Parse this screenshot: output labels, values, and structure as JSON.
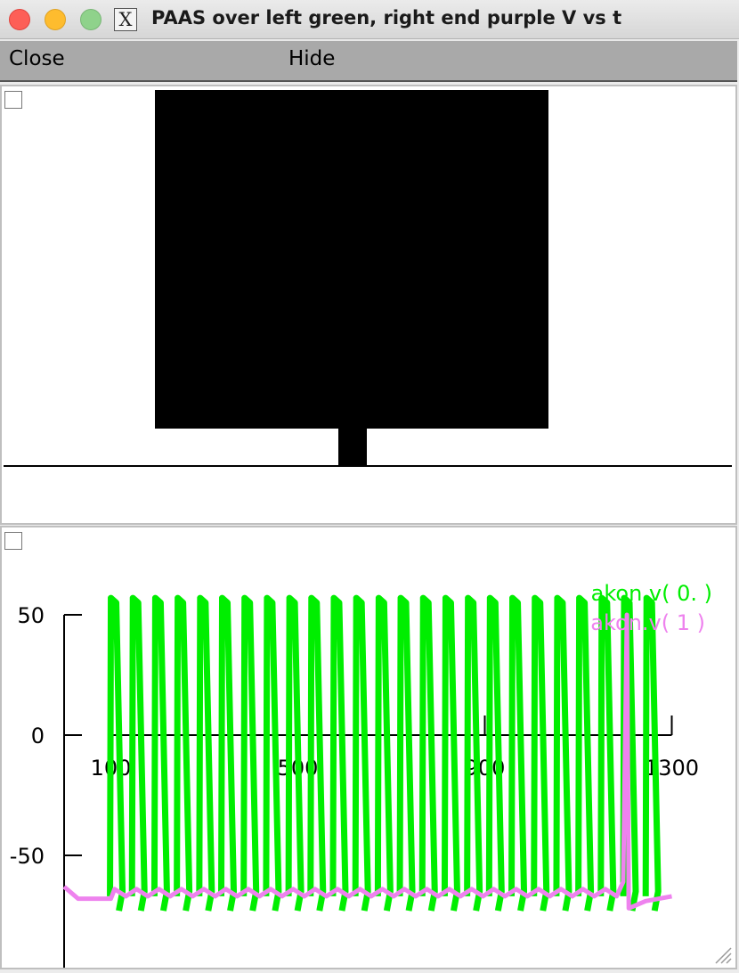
{
  "window": {
    "title": "PAAS over left green, right end purple V vs t",
    "x_icon": "X"
  },
  "menu": {
    "close_label": "Close",
    "hide_label": "Hide"
  },
  "icons": {
    "traffic_lights": [
      "close-light-icon",
      "minimize-light-icon",
      "zoom-light-icon"
    ],
    "app": "x11-icon",
    "resize": "resize-grip-icon"
  },
  "colors": {
    "green": "#00ee00",
    "purple": "#ee82ee",
    "menubar": "#a9a9a9"
  },
  "chart_data": {
    "type": "line",
    "title": "",
    "xlabel": "",
    "ylabel": "",
    "x_ticks": [
      100,
      500,
      900,
      1300
    ],
    "x_tick_labels": [
      "100",
      "500",
      "900",
      "1300"
    ],
    "y_ticks": [
      50,
      0,
      -50
    ],
    "y_tick_labels": [
      "50",
      "0",
      "-50"
    ],
    "xlim": [
      0,
      1300
    ],
    "ylim": [
      -93,
      62
    ],
    "legend_position": "top-right",
    "series": [
      {
        "name": "akon.v( 0. )",
        "color": "#00ee00",
        "rest_voltage": -67,
        "spike_peak_voltage": 57,
        "spike_times": [
          102,
          149,
          197,
          245,
          293,
          340,
          388,
          436,
          484,
          531,
          579,
          627,
          675,
          722,
          770,
          818,
          866,
          913,
          961,
          1009,
          1057,
          1104,
          1152,
          1200,
          1248
        ]
      },
      {
        "name": "akon.v( 1 )",
        "color": "#ee82ee",
        "start_voltage": -63,
        "rest_voltage": -66,
        "spike_times": [
          1204
        ],
        "spike_peak_voltage": 50,
        "after_spike_voltage": -72,
        "x_end": 1300
      }
    ]
  }
}
